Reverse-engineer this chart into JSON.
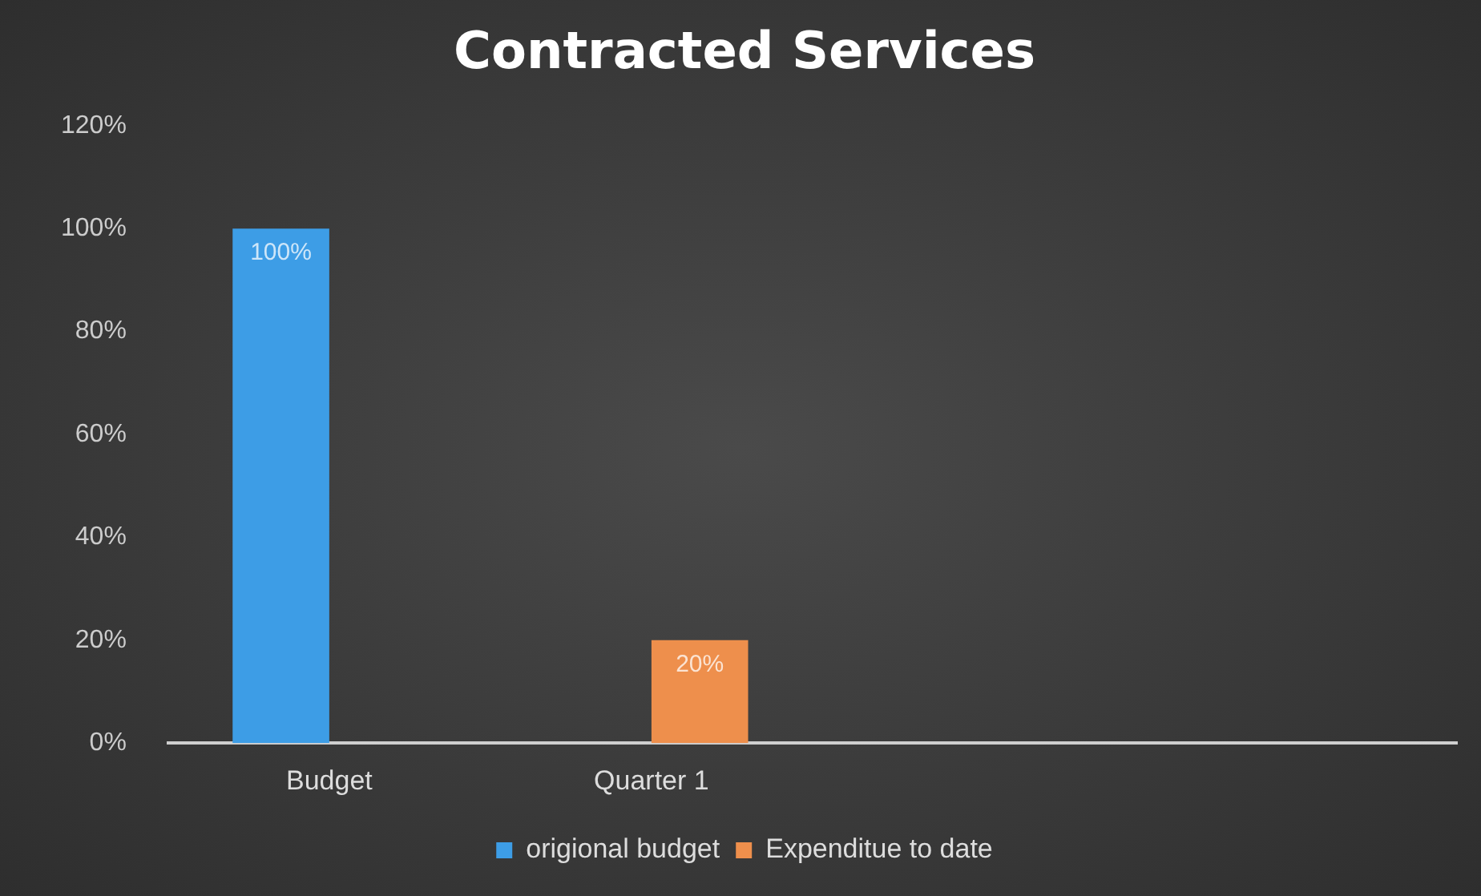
{
  "chart_data": {
    "type": "bar",
    "title": "Contracted Services",
    "categories": [
      "Budget",
      "Quarter 1",
      null,
      null
    ],
    "series": [
      {
        "name": "origional budget",
        "color": "#3d9de6",
        "values": [
          100,
          null,
          null,
          null
        ],
        "value_labels": [
          "100%",
          null,
          null,
          null
        ]
      },
      {
        "name": "Expenditue to date",
        "color": "#ee8f4c",
        "values": [
          null,
          20,
          null,
          null
        ],
        "value_labels": [
          null,
          "20%",
          null,
          null
        ]
      }
    ],
    "ylim": [
      0,
      120
    ],
    "yticks": [
      {
        "value": 0,
        "label": "0%"
      },
      {
        "value": 20,
        "label": "20%"
      },
      {
        "value": 40,
        "label": "40%"
      },
      {
        "value": 60,
        "label": "60%"
      },
      {
        "value": 80,
        "label": "80%"
      },
      {
        "value": 100,
        "label": "100%"
      },
      {
        "value": 120,
        "label": "120%"
      }
    ],
    "legend": "bottom",
    "grid": false
  }
}
